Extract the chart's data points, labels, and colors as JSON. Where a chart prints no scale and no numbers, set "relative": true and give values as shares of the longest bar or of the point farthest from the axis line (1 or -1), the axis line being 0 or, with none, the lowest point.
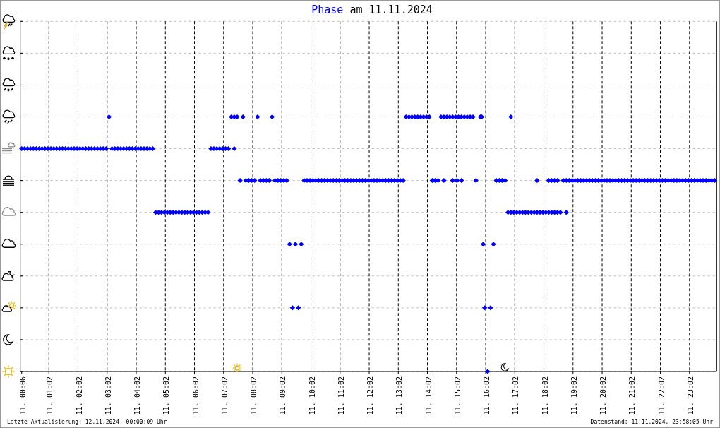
{
  "chart_data": {
    "type": "scatter",
    "title": "am 11.11.2024",
    "legend": "top",
    "marker": "diamond",
    "grid": true,
    "relative": true,
    "xlim": [
      "2024-11-11T00:03",
      "2024-11-11T23:58"
    ],
    "xticks": [
      {
        "value": "2024-11-11T00:06",
        "label": "11. 00:06"
      },
      {
        "value": "2024-11-11T01:02",
        "label": "11. 01:02"
      },
      {
        "value": "2024-11-11T02:02",
        "label": "11. 02:02"
      },
      {
        "value": "2024-11-11T03:02",
        "label": "11. 03:02"
      },
      {
        "value": "2024-11-11T04:02",
        "label": "11. 04:02"
      },
      {
        "value": "2024-11-11T05:02",
        "label": "11. 05:02"
      },
      {
        "value": "2024-11-11T06:02",
        "label": "11. 06:02"
      },
      {
        "value": "2024-11-11T07:02",
        "label": "11. 07:02"
      },
      {
        "value": "2024-11-11T08:02",
        "label": "11. 08:02"
      },
      {
        "value": "2024-11-11T09:02",
        "label": "11. 09:02"
      },
      {
        "value": "2024-11-11T10:02",
        "label": "11. 10:02"
      },
      {
        "value": "2024-11-11T11:02",
        "label": "11. 11:02"
      },
      {
        "value": "2024-11-11T12:02",
        "label": "11. 12:02"
      },
      {
        "value": "2024-11-11T13:02",
        "label": "11. 13:02"
      },
      {
        "value": "2024-11-11T14:02",
        "label": "11. 14:02"
      },
      {
        "value": "2024-11-11T15:02",
        "label": "11. 15:02"
      },
      {
        "value": "2024-11-11T16:02",
        "label": "11. 16:02"
      },
      {
        "value": "2024-11-11T17:02",
        "label": "11. 17:02"
      },
      {
        "value": "2024-11-11T18:02",
        "label": "11. 18:02"
      },
      {
        "value": "2024-11-11T19:02",
        "label": "11. 19:02"
      },
      {
        "value": "2024-11-11T20:02",
        "label": "11. 20:02"
      },
      {
        "value": "2024-11-11T21:02",
        "label": "11. 21:02"
      },
      {
        "value": "2024-11-11T22:02",
        "label": "11. 22:02"
      },
      {
        "value": "2024-11-11T23:02",
        "label": "11. 23:02"
      }
    ],
    "annotations": [
      "Letzte Aktualisierung: 12.11.2024, 00:00:09 Uhr",
      "Datenstand: 11.11.2024, 23:58:05 Uhr"
    ],
    "series": [
      {
        "name": "Phase",
        "color": "#0000ff",
        "x": [
          "2024-11-11T00:06",
          "2024-11-11T00:12",
          "2024-11-11T00:18",
          "2024-11-11T00:24",
          "2024-11-11T00:30",
          "2024-11-11T00:36",
          "2024-11-11T00:42",
          "2024-11-11T00:48",
          "2024-11-11T00:54",
          "2024-11-11T01:00",
          "2024-11-11T01:06",
          "2024-11-11T01:12",
          "2024-11-11T01:18",
          "2024-11-11T01:24",
          "2024-11-11T01:30",
          "2024-11-11T01:36",
          "2024-11-11T01:42",
          "2024-11-11T01:48",
          "2024-11-11T01:54",
          "2024-11-11T02:00",
          "2024-11-11T02:06",
          "2024-11-11T02:12",
          "2024-11-11T02:18",
          "2024-11-11T02:24",
          "2024-11-11T02:30",
          "2024-11-11T02:36",
          "2024-11-11T02:42",
          "2024-11-11T02:48",
          "2024-11-11T02:54",
          "2024-11-11T03:00",
          "2024-11-11T03:12",
          "2024-11-11T03:18",
          "2024-11-11T03:24",
          "2024-11-11T03:30",
          "2024-11-11T03:36",
          "2024-11-11T03:42",
          "2024-11-11T03:48",
          "2024-11-11T03:54",
          "2024-11-11T04:00",
          "2024-11-11T04:06",
          "2024-11-11T04:12",
          "2024-11-11T04:18",
          "2024-11-11T04:24",
          "2024-11-11T04:30",
          "2024-11-11T04:36",
          "2024-11-11T06:36",
          "2024-11-11T06:42",
          "2024-11-11T06:48",
          "2024-11-11T06:54",
          "2024-11-11T07:00",
          "2024-11-11T07:06",
          "2024-11-11T07:12",
          "2024-11-11T07:24",
          "2024-11-11T04:42",
          "2024-11-11T04:48",
          "2024-11-11T04:54",
          "2024-11-11T05:00",
          "2024-11-11T05:06",
          "2024-11-11T05:12",
          "2024-11-11T05:18",
          "2024-11-11T05:24",
          "2024-11-11T05:30",
          "2024-11-11T05:36",
          "2024-11-11T05:42",
          "2024-11-11T05:48",
          "2024-11-11T05:54",
          "2024-11-11T06:00",
          "2024-11-11T06:06",
          "2024-11-11T06:12",
          "2024-11-11T06:18",
          "2024-11-11T06:24",
          "2024-11-11T06:30",
          "2024-11-11T16:48",
          "2024-11-11T16:54",
          "2024-11-11T17:00",
          "2024-11-11T17:06",
          "2024-11-11T17:12",
          "2024-11-11T17:18",
          "2024-11-11T17:24",
          "2024-11-11T17:30",
          "2024-11-11T17:36",
          "2024-11-11T17:42",
          "2024-11-11T17:48",
          "2024-11-11T17:54",
          "2024-11-11T18:00",
          "2024-11-11T18:06",
          "2024-11-11T18:12",
          "2024-11-11T18:18",
          "2024-11-11T18:24",
          "2024-11-11T18:30",
          "2024-11-11T18:36",
          "2024-11-11T18:48",
          "2024-11-11T03:06",
          "2024-11-11T07:18",
          "2024-11-11T07:24",
          "2024-11-11T07:30",
          "2024-11-11T07:42",
          "2024-11-11T08:12",
          "2024-11-11T08:42",
          "2024-11-11T13:18",
          "2024-11-11T13:24",
          "2024-11-11T13:30",
          "2024-11-11T13:36",
          "2024-11-11T13:42",
          "2024-11-11T13:48",
          "2024-11-11T13:54",
          "2024-11-11T14:00",
          "2024-11-11T14:06",
          "2024-11-11T14:30",
          "2024-11-11T14:36",
          "2024-11-11T14:42",
          "2024-11-11T14:48",
          "2024-11-11T14:54",
          "2024-11-11T15:00",
          "2024-11-11T15:06",
          "2024-11-11T15:12",
          "2024-11-11T15:18",
          "2024-11-11T15:24",
          "2024-11-11T15:30",
          "2024-11-11T15:36",
          "2024-11-11T15:51",
          "2024-11-11T15:54",
          "2024-11-11T16:54",
          "2024-11-11T07:36",
          "2024-11-11T07:48",
          "2024-11-11T07:54",
          "2024-11-11T08:00",
          "2024-11-11T08:06",
          "2024-11-11T08:18",
          "2024-11-11T08:24",
          "2024-11-11T08:30",
          "2024-11-11T08:36",
          "2024-11-11T08:48",
          "2024-11-11T08:54",
          "2024-11-11T09:00",
          "2024-11-11T09:06",
          "2024-11-11T09:12",
          "2024-11-11T09:48",
          "2024-11-11T09:54",
          "2024-11-11T10:00",
          "2024-11-11T10:06",
          "2024-11-11T10:12",
          "2024-11-11T10:18",
          "2024-11-11T10:24",
          "2024-11-11T10:30",
          "2024-11-11T10:36",
          "2024-11-11T10:42",
          "2024-11-11T10:48",
          "2024-11-11T10:54",
          "2024-11-11T11:00",
          "2024-11-11T11:06",
          "2024-11-11T11:12",
          "2024-11-11T11:18",
          "2024-11-11T11:24",
          "2024-11-11T11:30",
          "2024-11-11T11:36",
          "2024-11-11T11:42",
          "2024-11-11T11:48",
          "2024-11-11T11:54",
          "2024-11-11T12:00",
          "2024-11-11T12:06",
          "2024-11-11T12:12",
          "2024-11-11T12:18",
          "2024-11-11T12:24",
          "2024-11-11T12:30",
          "2024-11-11T12:36",
          "2024-11-11T12:42",
          "2024-11-11T12:48",
          "2024-11-11T12:54",
          "2024-11-11T13:00",
          "2024-11-11T13:06",
          "2024-11-11T13:12",
          "2024-11-11T14:12",
          "2024-11-11T14:18",
          "2024-11-11T14:24",
          "2024-11-11T14:36",
          "2024-11-11T14:54",
          "2024-11-11T15:03",
          "2024-11-11T15:12",
          "2024-11-11T15:42",
          "2024-11-11T16:24",
          "2024-11-11T16:30",
          "2024-11-11T16:36",
          "2024-11-11T16:42",
          "2024-11-11T17:48",
          "2024-11-11T18:12",
          "2024-11-11T18:18",
          "2024-11-11T18:24",
          "2024-11-11T18:30",
          "2024-11-11T18:42",
          "2024-11-11T18:48",
          "2024-11-11T18:54",
          "2024-11-11T19:00",
          "2024-11-11T19:06",
          "2024-11-11T19:12",
          "2024-11-11T19:18",
          "2024-11-11T19:24",
          "2024-11-11T19:30",
          "2024-11-11T19:36",
          "2024-11-11T19:42",
          "2024-11-11T19:48",
          "2024-11-11T19:54",
          "2024-11-11T20:00",
          "2024-11-11T20:06",
          "2024-11-11T20:12",
          "2024-11-11T20:18",
          "2024-11-11T20:24",
          "2024-11-11T20:30",
          "2024-11-11T20:36",
          "2024-11-11T20:42",
          "2024-11-11T20:48",
          "2024-11-11T20:54",
          "2024-11-11T21:00",
          "2024-11-11T21:06",
          "2024-11-11T21:12",
          "2024-11-11T21:18",
          "2024-11-11T21:24",
          "2024-11-11T21:30",
          "2024-11-11T21:36",
          "2024-11-11T21:42",
          "2024-11-11T21:48",
          "2024-11-11T21:54",
          "2024-11-11T22:00",
          "2024-11-11T22:06",
          "2024-11-11T22:12",
          "2024-11-11T22:18",
          "2024-11-11T22:24",
          "2024-11-11T22:30",
          "2024-11-11T22:36",
          "2024-11-11T22:42",
          "2024-11-11T22:48",
          "2024-11-11T22:54",
          "2024-11-11T23:00",
          "2024-11-11T23:06",
          "2024-11-11T23:12",
          "2024-11-11T23:18",
          "2024-11-11T23:24",
          "2024-11-11T23:30",
          "2024-11-11T23:36",
          "2024-11-11T23:42",
          "2024-11-11T23:48",
          "2024-11-11T23:54",
          "2024-11-11T09:18",
          "2024-11-11T09:30",
          "2024-11-11T09:42",
          "2024-11-11T15:57",
          "2024-11-11T16:18",
          "2024-11-11T09:24",
          "2024-11-11T09:36",
          "2024-11-11T16:00",
          "2024-11-11T16:12",
          "2024-11-11T16:06"
        ],
        "values": [
          0.875,
          0.875,
          0.875,
          0.875,
          0.875,
          0.875,
          0.875,
          0.875,
          0.875,
          0.875,
          0.875,
          0.875,
          0.875,
          0.875,
          0.875,
          0.875,
          0.875,
          0.875,
          0.875,
          0.875,
          0.875,
          0.875,
          0.875,
          0.875,
          0.875,
          0.875,
          0.875,
          0.875,
          0.875,
          0.875,
          0.875,
          0.875,
          0.875,
          0.875,
          0.875,
          0.875,
          0.875,
          0.875,
          0.875,
          0.875,
          0.875,
          0.875,
          0.875,
          0.875,
          0.875,
          0.875,
          0.875,
          0.875,
          0.875,
          0.875,
          0.875,
          0.875,
          0.875,
          0.625,
          0.625,
          0.625,
          0.625,
          0.625,
          0.625,
          0.625,
          0.625,
          0.625,
          0.625,
          0.625,
          0.625,
          0.625,
          0.625,
          0.625,
          0.625,
          0.625,
          0.625,
          0.625,
          0.625,
          0.625,
          0.625,
          0.625,
          0.625,
          0.625,
          0.625,
          0.625,
          0.625,
          0.625,
          0.625,
          0.625,
          0.625,
          0.625,
          0.625,
          0.625,
          0.625,
          0.625,
          0.625,
          0.625,
          1,
          1,
          1,
          1,
          1,
          1,
          1,
          1,
          1,
          1,
          1,
          1,
          1,
          1,
          1,
          1,
          1,
          1,
          1,
          1,
          1,
          1,
          1,
          1,
          1,
          1,
          1,
          1,
          1,
          1,
          1,
          0.75,
          0.75,
          0.75,
          0.75,
          0.75,
          0.75,
          0.75,
          0.75,
          0.75,
          0.75,
          0.75,
          0.75,
          0.75,
          0.75,
          0.75,
          0.75,
          0.75,
          0.75,
          0.75,
          0.75,
          0.75,
          0.75,
          0.75,
          0.75,
          0.75,
          0.75,
          0.75,
          0.75,
          0.75,
          0.75,
          0.75,
          0.75,
          0.75,
          0.75,
          0.75,
          0.75,
          0.75,
          0.75,
          0.75,
          0.75,
          0.75,
          0.75,
          0.75,
          0.75,
          0.75,
          0.75,
          0.75,
          0.75,
          0.75,
          0.75,
          0.75,
          0.75,
          0.75,
          0.75,
          0.75,
          0.75,
          0.75,
          0.75,
          0.75,
          0.75,
          0.75,
          0.75,
          0.75,
          0.75,
          0.75,
          0.75,
          0.75,
          0.75,
          0.75,
          0.75,
          0.75,
          0.75,
          0.75,
          0.75,
          0.75,
          0.75,
          0.75,
          0.75,
          0.75,
          0.75,
          0.75,
          0.75,
          0.75,
          0.75,
          0.75,
          0.75,
          0.75,
          0.75,
          0.75,
          0.75,
          0.75,
          0.75,
          0.75,
          0.75,
          0.75,
          0.75,
          0.75,
          0.75,
          0.75,
          0.75,
          0.75,
          0.75,
          0.75,
          0.75,
          0.75,
          0.75,
          0.75,
          0.75,
          0.75,
          0.75,
          0.75,
          0.75,
          0.75,
          0.75,
          0.75,
          0.75,
          0.75,
          0.75,
          0.75,
          0.5,
          0.5,
          0.5,
          0.5,
          0.5,
          0.25,
          0.25,
          0.25,
          0.25,
          0
        ]
      }
    ]
  }
}
